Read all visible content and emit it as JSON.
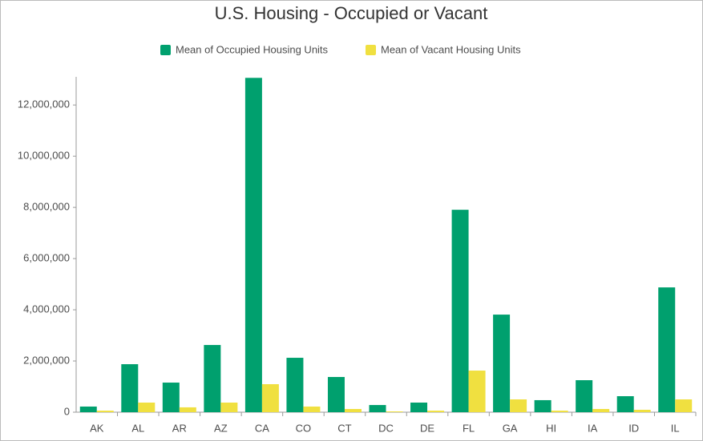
{
  "chart_data": {
    "type": "bar",
    "title": "U.S. Housing - Occupied or Vacant",
    "categories": [
      "AK",
      "AL",
      "AR",
      "AZ",
      "CA",
      "CO",
      "CT",
      "DC",
      "DE",
      "FL",
      "GA",
      "HI",
      "IA",
      "ID",
      "IL"
    ],
    "series": [
      {
        "name": "Mean of Occupied Housing Units",
        "color": "#00a06e",
        "values": [
          220000,
          1875000,
          1156000,
          2625000,
          13060000,
          2125000,
          1375000,
          280000,
          375000,
          7906000,
          3812000,
          470000,
          1250000,
          625000,
          4875000
        ]
      },
      {
        "name": "Mean of Vacant Housing Units",
        "color": "#f0e040",
        "values": [
          60000,
          375000,
          190000,
          375000,
          1094000,
          220000,
          125000,
          30000,
          60000,
          1625000,
          500000,
          60000,
          125000,
          94000,
          500000
        ]
      }
    ],
    "ylim": [
      0,
      13100000
    ],
    "yticks": [
      {
        "value": 0,
        "label": "0"
      },
      {
        "value": 2000000,
        "label": "2,000,000"
      },
      {
        "value": 4000000,
        "label": "4,000,000"
      },
      {
        "value": 6000000,
        "label": "6,000,000"
      },
      {
        "value": 8000000,
        "label": "8,000,000"
      },
      {
        "value": 10000000,
        "label": "10,000,000"
      },
      {
        "value": 12000000,
        "label": "12,000,000"
      }
    ],
    "grid": false,
    "legend": "top"
  }
}
